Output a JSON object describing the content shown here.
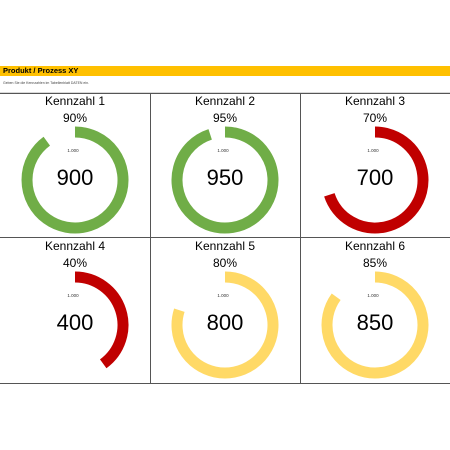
{
  "header": {
    "title": "Produkt / Prozess XY",
    "hint": "Geben Sie die Kennzahlen im Tabellenblatt DATEN ein."
  },
  "colors": {
    "title_bar": "#ffc000",
    "green": "#70ad47",
    "red": "#c00000",
    "yellow": "#ffd966"
  },
  "kpis": [
    {
      "label": "Kennzahl 1",
      "percent_text": "90%",
      "max_text": "1.000",
      "value_text": "900",
      "fraction": 0.9,
      "color": "#70ad47"
    },
    {
      "label": "Kennzahl 2",
      "percent_text": "95%",
      "max_text": "1.000",
      "value_text": "950",
      "fraction": 0.95,
      "color": "#70ad47"
    },
    {
      "label": "Kennzahl 3",
      "percent_text": "70%",
      "max_text": "1.000",
      "value_text": "700",
      "fraction": 0.7,
      "color": "#c00000"
    },
    {
      "label": "Kennzahl 4",
      "percent_text": "40%",
      "max_text": "1.000",
      "value_text": "400",
      "fraction": 0.4,
      "color": "#c00000"
    },
    {
      "label": "Kennzahl 5",
      "percent_text": "80%",
      "max_text": "1.000",
      "value_text": "800",
      "fraction": 0.8,
      "color": "#ffd966"
    },
    {
      "label": "Kennzahl 6",
      "percent_text": "85%",
      "max_text": "1.000",
      "value_text": "850",
      "fraction": 0.85,
      "color": "#ffd966"
    }
  ]
}
